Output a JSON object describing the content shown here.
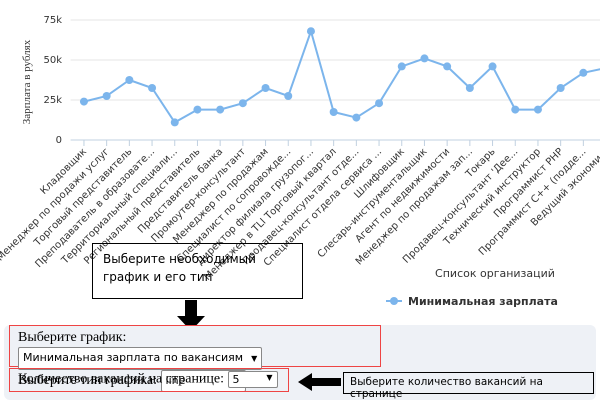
{
  "chart_data": {
    "type": "line",
    "y_axis_label": "Зарплата в рублях",
    "x_axis_label": "Список организаций",
    "categories": [
      "Кладовщик",
      "Менеджер по продажи услуг",
      "Торговый представитель",
      "Преподаватель в образовате...",
      "Территориальный специали...",
      "Региональный представитель",
      "Представитель банка",
      "Промоутер-консультант",
      "Менеджер по продажам",
      "Специалист по сопровожде...",
      "Директор филиала грузопог...",
      "Менеджер в TLI Торговый квартал",
      "Продавец-консультант отде...",
      "Специалист отдела сервиса ...",
      "Шлифовщик",
      "Слесарь-инструментальщик",
      "Агент по недвижимости",
      "Менеджер по продажам зап...",
      "Токарь",
      "Продавец-консультант 'Дее...",
      "Технический инструктор",
      "Программист PHP",
      "Программист C++ (подде...",
      "Ведущий экономи..."
    ],
    "series": [
      {
        "name": "Минимальная зарплата",
        "color": "#7cb5ec",
        "values": [
          24000,
          27500,
          37500,
          32500,
          11000,
          19000,
          19000,
          23000,
          32500,
          27500,
          68000,
          17500,
          14000,
          23000,
          46000,
          51000,
          46000,
          32500,
          46000,
          19000,
          19000,
          32500,
          42000,
          45000
        ]
      }
    ],
    "ylim": [
      0,
      75000
    ],
    "yticks": [
      0,
      {
        "value": 25000,
        "label": "25k"
      },
      {
        "value": 50000,
        "label": "50k"
      },
      {
        "value": 75000,
        "label": "75k"
      }
    ],
    "grid": true,
    "legend": "bottom"
  },
  "hint_chart": "Выберите необходимый график и его тип",
  "hint_count": "Выберите количество вакансий на странице",
  "controls": {
    "chart_label": "Выберите график:",
    "chart_value": "Минимальная зарплата по вакансиям",
    "type_label": "Выберите тип графика:",
    "type_value": "line",
    "count_label": "Количество вакансий на странице:",
    "count_value": "5"
  }
}
